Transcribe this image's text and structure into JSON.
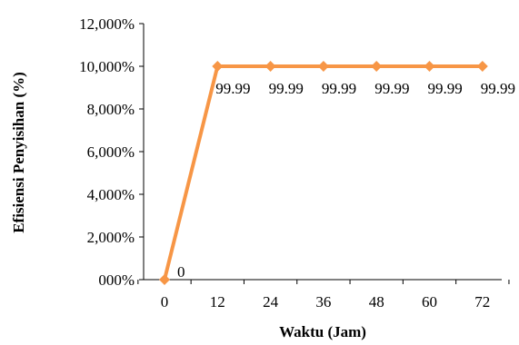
{
  "chart_data": {
    "type": "line",
    "xlabel": "Waktu (Jam)",
    "ylabel": "Efisiensi Penyisihan (%)",
    "x": [
      0,
      12,
      24,
      36,
      48,
      60,
      72
    ],
    "x_tick_labels": [
      "0",
      "12",
      "24",
      "36",
      "48",
      "60",
      "72"
    ],
    "ylim": [
      0,
      12000
    ],
    "y_tick_labels": [
      "000%",
      "2,000%",
      "4,000%",
      "6,000%",
      "8,000%",
      "10,000%",
      "12,000%"
    ],
    "series": [
      {
        "values": [
          0,
          10000,
          10000,
          10000,
          10000,
          10000,
          10000
        ],
        "data_labels": [
          "0",
          "99.99",
          "99.99",
          "99.99",
          "99.99",
          "99.99",
          "99.99"
        ]
      }
    ],
    "grid": false,
    "legend": "none",
    "series_color": "#F79646"
  }
}
